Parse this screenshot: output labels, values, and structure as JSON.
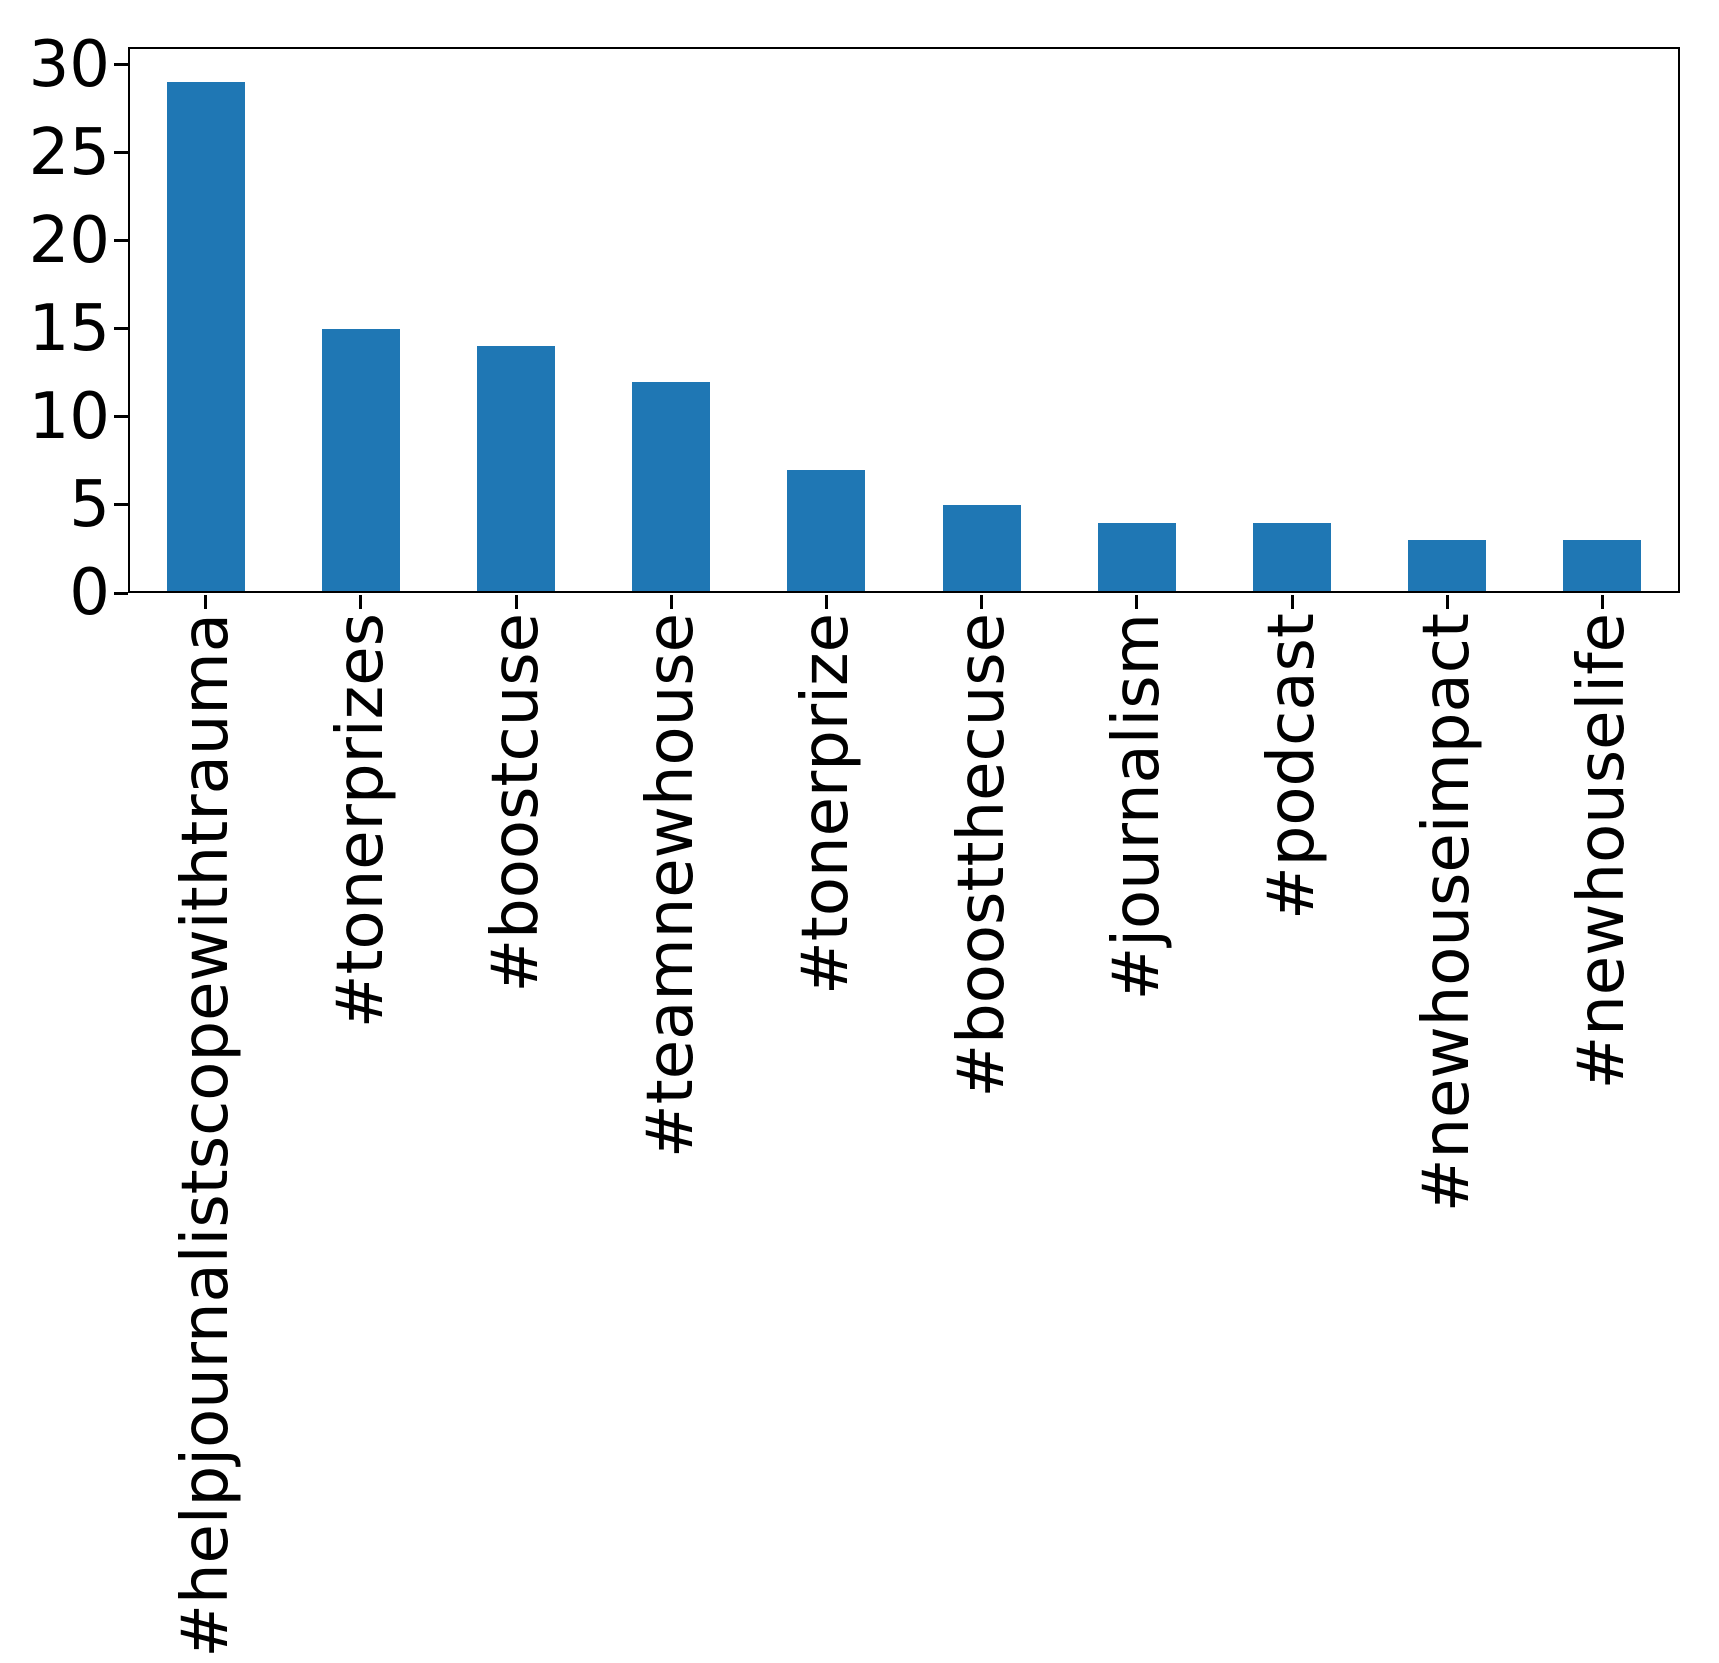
{
  "chart_data": {
    "type": "bar",
    "title": "",
    "xlabel": "",
    "ylabel": "",
    "categories": [
      "#helpjournalistscopewithtrauma",
      "#tonerprizes",
      "#boostcuse",
      "#teamnewhouse",
      "#tonerprize",
      "#boostthecuse",
      "#journalism",
      "#podcast",
      "#newhouseimpact",
      "#newhouselife"
    ],
    "values": [
      29,
      15,
      14,
      12,
      7,
      5,
      4,
      4,
      3,
      3
    ],
    "yticks": [
      0,
      5,
      10,
      15,
      20,
      25,
      30
    ],
    "ylim": [
      0,
      31
    ],
    "grid": false,
    "legend_position": "none",
    "bar_color": "#1f77b4",
    "axis_color": "#000000",
    "background_color": "#ffffff",
    "x_tick_rotation_degrees": 90
  }
}
